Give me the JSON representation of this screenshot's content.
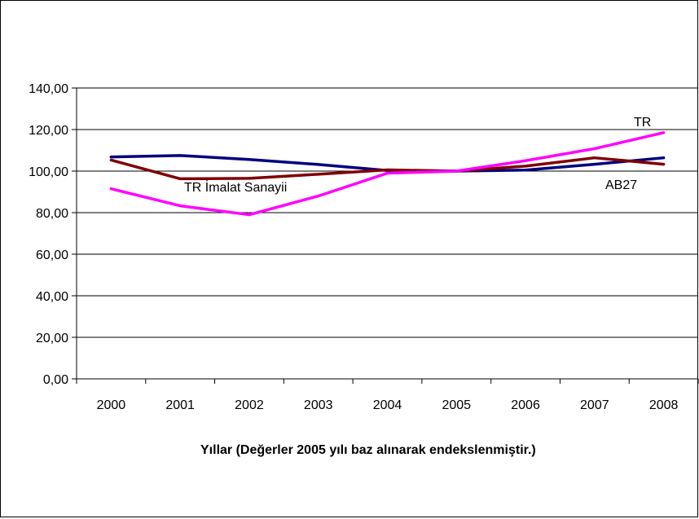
{
  "chart_data": {
    "type": "line",
    "title": "",
    "xlabel": "Yıllar (Değerler 2005 yılı baz alınarak endekslenmiştir.)",
    "ylabel": "",
    "categories": [
      "2000",
      "2001",
      "2002",
      "2003",
      "2004",
      "2005",
      "2006",
      "2007",
      "2008"
    ],
    "ylim": [
      0,
      140
    ],
    "yticks": [
      "0,00",
      "20,00",
      "40,00",
      "60,00",
      "80,00",
      "100,00",
      "120,00",
      "140,00"
    ],
    "grid": true,
    "legend": "none",
    "series": [
      {
        "name": "AB27",
        "color": "#000080",
        "values": [
          106.8,
          107.5,
          105.6,
          103.2,
          100.3,
          100.0,
          100.5,
          103.3,
          106.4
        ]
      },
      {
        "name": "TR İmalat Sanayii",
        "color": "#800000",
        "values": [
          105.3,
          96.3,
          96.5,
          98.5,
          100.6,
          100.0,
          102.4,
          106.4,
          103.3
        ]
      },
      {
        "name": "TR",
        "color": "#FF00FF",
        "values": [
          91.5,
          83.3,
          79.0,
          88.0,
          99.0,
          100.0,
          105.0,
          110.8,
          118.5
        ]
      }
    ]
  }
}
